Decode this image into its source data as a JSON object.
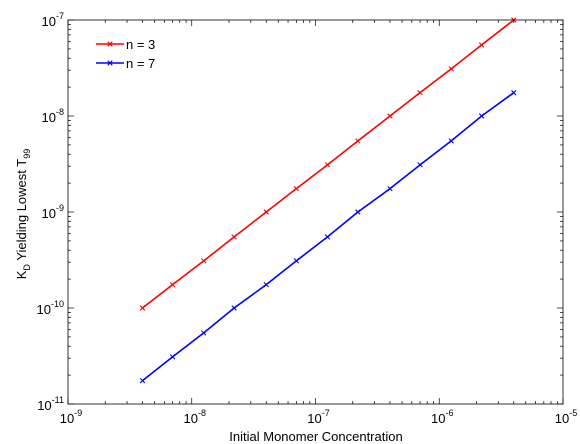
{
  "chart_data": {
    "type": "line",
    "title": "",
    "xlabel": "Initial Monomer Concentration",
    "ylabel": {
      "prefix": "K",
      "prefix_sub": "D",
      "middle": " Yielding Lowest T",
      "suffix_sub": "99"
    },
    "x_scale": "log",
    "y_scale": "log",
    "xlim": [
      1e-09,
      1e-05
    ],
    "ylim": [
      1e-11,
      1e-07
    ],
    "x_ticks": [
      {
        "base": "10",
        "exp": "-9",
        "value": 1e-09
      },
      {
        "base": "10",
        "exp": "-8",
        "value": 1e-08
      },
      {
        "base": "10",
        "exp": "-7",
        "value": 1e-07
      },
      {
        "base": "10",
        "exp": "-6",
        "value": 1e-06
      },
      {
        "base": "10",
        "exp": "-5",
        "value": 1e-05
      }
    ],
    "y_ticks": [
      {
        "base": "10",
        "exp": "-11",
        "value": 1e-11
      },
      {
        "base": "10",
        "exp": "-10",
        "value": 1e-10
      },
      {
        "base": "10",
        "exp": "-9",
        "value": 1e-09
      },
      {
        "base": "10",
        "exp": "-8",
        "value": 1e-08
      },
      {
        "base": "10",
        "exp": "-7",
        "value": 1e-07
      }
    ],
    "grid": false,
    "legend_position": "top-left",
    "x": [
      4e-09,
      7e-09,
      1.25e-08,
      2.2e-08,
      4e-08,
      7e-08,
      1.25e-07,
      2.2e-07,
      4e-07,
      7e-07,
      1.25e-06,
      2.2e-06,
      4e-06
    ],
    "series": [
      {
        "name": "n = 3",
        "color": "#ff0000",
        "values": [
          1e-10,
          1.75e-10,
          3.1e-10,
          5.5e-10,
          1e-09,
          1.75e-09,
          3.1e-09,
          5.5e-09,
          1e-08,
          1.75e-08,
          3.1e-08,
          5.5e-08,
          1e-07
        ]
      },
      {
        "name": "n = 7",
        "color": "#0000ff",
        "values": [
          1.75e-11,
          3.1e-11,
          5.5e-11,
          1e-10,
          1.75e-10,
          3.1e-10,
          5.5e-10,
          1e-09,
          1.75e-09,
          3.1e-09,
          5.5e-09,
          1e-08,
          1.75e-08
        ]
      }
    ]
  }
}
